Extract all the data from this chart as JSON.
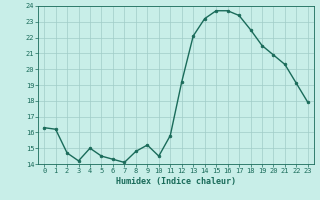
{
  "x": [
    0,
    1,
    2,
    3,
    4,
    5,
    6,
    7,
    8,
    9,
    10,
    11,
    12,
    13,
    14,
    15,
    16,
    17,
    18,
    19,
    20,
    21,
    22,
    23
  ],
  "y": [
    16.3,
    16.2,
    14.7,
    14.2,
    15.0,
    14.5,
    14.3,
    14.1,
    14.8,
    15.2,
    14.5,
    15.8,
    19.2,
    22.1,
    23.2,
    23.7,
    23.7,
    23.4,
    22.5,
    21.5,
    20.9,
    20.3,
    19.1,
    17.9
  ],
  "line_color": "#1a6b5a",
  "marker_color": "#1a6b5a",
  "bg_color": "#c8eee8",
  "grid_color": "#a0ccc8",
  "xlabel": "Humidex (Indice chaleur)",
  "ylim": [
    14,
    24
  ],
  "xlim_min": -0.5,
  "xlim_max": 23.5,
  "yticks": [
    14,
    15,
    16,
    17,
    18,
    19,
    20,
    21,
    22,
    23,
    24
  ],
  "xticks": [
    0,
    1,
    2,
    3,
    4,
    5,
    6,
    7,
    8,
    9,
    10,
    11,
    12,
    13,
    14,
    15,
    16,
    17,
    18,
    19,
    20,
    21,
    22,
    23
  ],
  "xtick_labels": [
    "0",
    "1",
    "2",
    "3",
    "4",
    "5",
    "6",
    "7",
    "8",
    "9",
    "10",
    "11",
    "12",
    "13",
    "14",
    "15",
    "16",
    "17",
    "18",
    "19",
    "20",
    "21",
    "22",
    "23"
  ],
  "font_color": "#1a6b5a",
  "tick_fontsize": 5,
  "xlabel_fontsize": 6,
  "linewidth": 1.0,
  "markersize": 2.0
}
